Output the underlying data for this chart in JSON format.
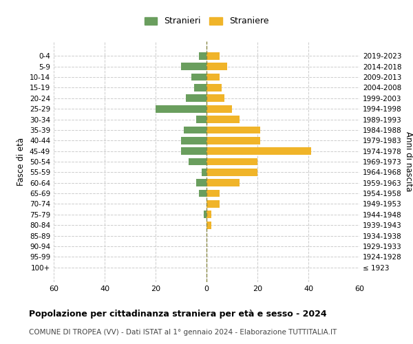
{
  "age_groups": [
    "100+",
    "95-99",
    "90-94",
    "85-89",
    "80-84",
    "75-79",
    "70-74",
    "65-69",
    "60-64",
    "55-59",
    "50-54",
    "45-49",
    "40-44",
    "35-39",
    "30-34",
    "25-29",
    "20-24",
    "15-19",
    "10-14",
    "5-9",
    "0-4"
  ],
  "birth_years": [
    "≤ 1923",
    "1924-1928",
    "1929-1933",
    "1934-1938",
    "1939-1943",
    "1944-1948",
    "1949-1953",
    "1954-1958",
    "1959-1963",
    "1964-1968",
    "1969-1973",
    "1974-1978",
    "1979-1983",
    "1984-1988",
    "1989-1993",
    "1994-1998",
    "1999-2003",
    "2004-2008",
    "2009-2013",
    "2014-2018",
    "2019-2023"
  ],
  "males": [
    0,
    0,
    0,
    0,
    0,
    1,
    0,
    3,
    4,
    2,
    7,
    10,
    10,
    9,
    4,
    20,
    8,
    5,
    6,
    10,
    3
  ],
  "females": [
    0,
    0,
    0,
    0,
    2,
    2,
    5,
    5,
    13,
    20,
    20,
    41,
    21,
    21,
    13,
    10,
    7,
    6,
    5,
    8,
    5
  ],
  "male_color": "#6a9e5e",
  "female_color": "#f0b429",
  "title": "Popolazione per cittadinanza straniera per età e sesso - 2024",
  "subtitle": "COMUNE DI TROPEA (VV) - Dati ISTAT al 1° gennaio 2024 - Elaborazione TUTTITALIA.IT",
  "ylabel_left": "Fasce di età",
  "ylabel_right": "Anni di nascita",
  "legend_male": "Stranieri",
  "legend_female": "Straniere",
  "xlim": 60,
  "background_color": "#ffffff",
  "grid_color": "#cccccc"
}
